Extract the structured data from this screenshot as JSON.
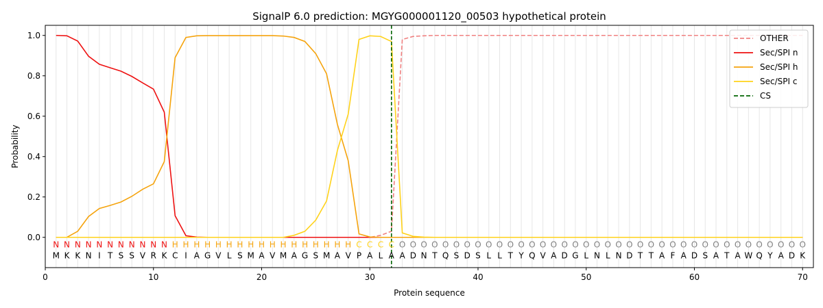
{
  "chart_data": {
    "type": "line",
    "title": "SignalP 6.0 prediction: MGYG000001120_00503 hypothetical protein",
    "xlabel": "Protein sequence",
    "ylabel": "Probability",
    "xlim": [
      0,
      71
    ],
    "ylim": [
      -0.15,
      1.05
    ],
    "xticks": [
      0,
      10,
      20,
      30,
      40,
      50,
      60,
      70
    ],
    "yticks": [
      0.0,
      0.2,
      0.4,
      0.6,
      0.8,
      1.0
    ],
    "xtick_labels": [
      "0",
      "10",
      "20",
      "30",
      "40",
      "50",
      "60",
      "70"
    ],
    "ytick_labels": [
      "0.0",
      "0.2",
      "0.4",
      "0.6",
      "0.8",
      "1.0"
    ],
    "grid": "vertical",
    "legend_position": "top-right",
    "x": [
      1,
      2,
      3,
      4,
      5,
      6,
      7,
      8,
      9,
      10,
      11,
      12,
      13,
      14,
      15,
      16,
      17,
      18,
      19,
      20,
      21,
      22,
      23,
      24,
      25,
      26,
      27,
      28,
      29,
      30,
      31,
      32,
      33,
      34,
      35,
      36,
      37,
      38,
      39,
      40,
      41,
      42,
      43,
      44,
      45,
      46,
      47,
      48,
      49,
      50,
      51,
      52,
      53,
      54,
      55,
      56,
      57,
      58,
      59,
      60,
      61,
      62,
      63,
      64,
      65,
      66,
      67,
      68,
      69,
      70
    ],
    "series": [
      {
        "name": "OTHER",
        "color": "#f08080",
        "dash": "dashed",
        "values": [
          0,
          0,
          0,
          0,
          0,
          0,
          0,
          0,
          0,
          0,
          0,
          0,
          0,
          0,
          0,
          0,
          0,
          0,
          0,
          0,
          0,
          0,
          0,
          0,
          0,
          0,
          0,
          0,
          0,
          0,
          0.01,
          0.03,
          0.98,
          0.995,
          0.998,
          1,
          1,
          1,
          1,
          1,
          1,
          1,
          1,
          1,
          1,
          1,
          1,
          1,
          1,
          1,
          1,
          1,
          1,
          1,
          1,
          1,
          1,
          1,
          1,
          1,
          1,
          1,
          1,
          1,
          1,
          1,
          1,
          1,
          1,
          1
        ]
      },
      {
        "name": "Sec/SPI n",
        "color": "#ee1111",
        "dash": "solid",
        "values": [
          1.0,
          0.998,
          0.972,
          0.897,
          0.857,
          0.84,
          0.823,
          0.797,
          0.765,
          0.734,
          0.62,
          0.107,
          0.008,
          0.001,
          0,
          0,
          0,
          0,
          0,
          0,
          0,
          0,
          0,
          0,
          0,
          0,
          0,
          0,
          0,
          0,
          0,
          0,
          0,
          0,
          0,
          0,
          0,
          0,
          0,
          0,
          0,
          0,
          0,
          0,
          0,
          0,
          0,
          0,
          0,
          0,
          0,
          0,
          0,
          0,
          0,
          0,
          0,
          0,
          0,
          0,
          0,
          0,
          0,
          0,
          0,
          0,
          0,
          0,
          0,
          0
        ]
      },
      {
        "name": "Sec/SPI h",
        "color": "#f5a30c",
        "dash": "solid",
        "values": [
          0,
          0,
          0.03,
          0.103,
          0.143,
          0.158,
          0.175,
          0.203,
          0.238,
          0.265,
          0.375,
          0.89,
          0.99,
          0.998,
          0.999,
          0.999,
          0.999,
          0.999,
          0.999,
          0.999,
          0.999,
          0.997,
          0.99,
          0.97,
          0.91,
          0.81,
          0.56,
          0.38,
          0.017,
          0.002,
          0,
          0,
          0,
          0,
          0,
          0,
          0,
          0,
          0,
          0,
          0,
          0,
          0,
          0,
          0,
          0,
          0,
          0,
          0,
          0,
          0,
          0,
          0,
          0,
          0,
          0,
          0,
          0,
          0,
          0,
          0,
          0,
          0,
          0,
          0,
          0,
          0,
          0,
          0,
          0
        ]
      },
      {
        "name": "Sec/SPI c",
        "color": "#ffd21a",
        "dash": "solid",
        "values": [
          0,
          0,
          0,
          0,
          0,
          0,
          0,
          0,
          0,
          0,
          0,
          0,
          0,
          0,
          0,
          0,
          0,
          0,
          0,
          0,
          0,
          0,
          0.01,
          0.03,
          0.085,
          0.18,
          0.43,
          0.61,
          0.98,
          0.998,
          0.995,
          0.97,
          0.022,
          0.005,
          0.001,
          0,
          0,
          0,
          0,
          0,
          0,
          0,
          0,
          0,
          0,
          0,
          0,
          0,
          0,
          0,
          0,
          0,
          0,
          0,
          0,
          0,
          0,
          0,
          0,
          0,
          0,
          0,
          0,
          0,
          0,
          0,
          0,
          0,
          0,
          0
        ]
      }
    ],
    "cs_marker": {
      "name": "CS",
      "x": 32,
      "color": "#006400"
    },
    "sequence": [
      "M",
      "K",
      "K",
      "N",
      "I",
      "T",
      "S",
      "S",
      "V",
      "R",
      "K",
      "C",
      "I",
      "A",
      "G",
      "V",
      "L",
      "S",
      "M",
      "A",
      "V",
      "M",
      "A",
      "G",
      "S",
      "M",
      "A",
      "V",
      "P",
      "A",
      "L",
      "A",
      "A",
      "D",
      "N",
      "T",
      "Q",
      "S",
      "D",
      "S",
      "L",
      "L",
      "T",
      "Y",
      "Q",
      "V",
      "A",
      "D",
      "G",
      "L",
      "N",
      "L",
      "N",
      "D",
      "T",
      "T",
      "A",
      "F",
      "A",
      "D",
      "S",
      "A",
      "T",
      "A",
      "W",
      "Q",
      "Y",
      "A",
      "D",
      "K"
    ],
    "labels": [
      "N",
      "N",
      "N",
      "N",
      "N",
      "N",
      "N",
      "N",
      "N",
      "N",
      "N",
      "H",
      "H",
      "H",
      "H",
      "H",
      "H",
      "H",
      "H",
      "H",
      "H",
      "H",
      "H",
      "H",
      "H",
      "H",
      "H",
      "H",
      "C",
      "C",
      "C",
      "C",
      "O",
      "O",
      "O",
      "O",
      "O",
      "O",
      "O",
      "O",
      "O",
      "O",
      "O",
      "O",
      "O",
      "O",
      "O",
      "O",
      "O",
      "O",
      "O",
      "O",
      "O",
      "O",
      "O",
      "O",
      "O",
      "O",
      "O",
      "O",
      "O",
      "O",
      "O",
      "O",
      "O",
      "O",
      "O",
      "O",
      "O",
      "O"
    ],
    "label_colors": {
      "N": "#ee1111",
      "H": "#f5a30c",
      "C": "#ffd21a",
      "O": "#808080"
    }
  }
}
